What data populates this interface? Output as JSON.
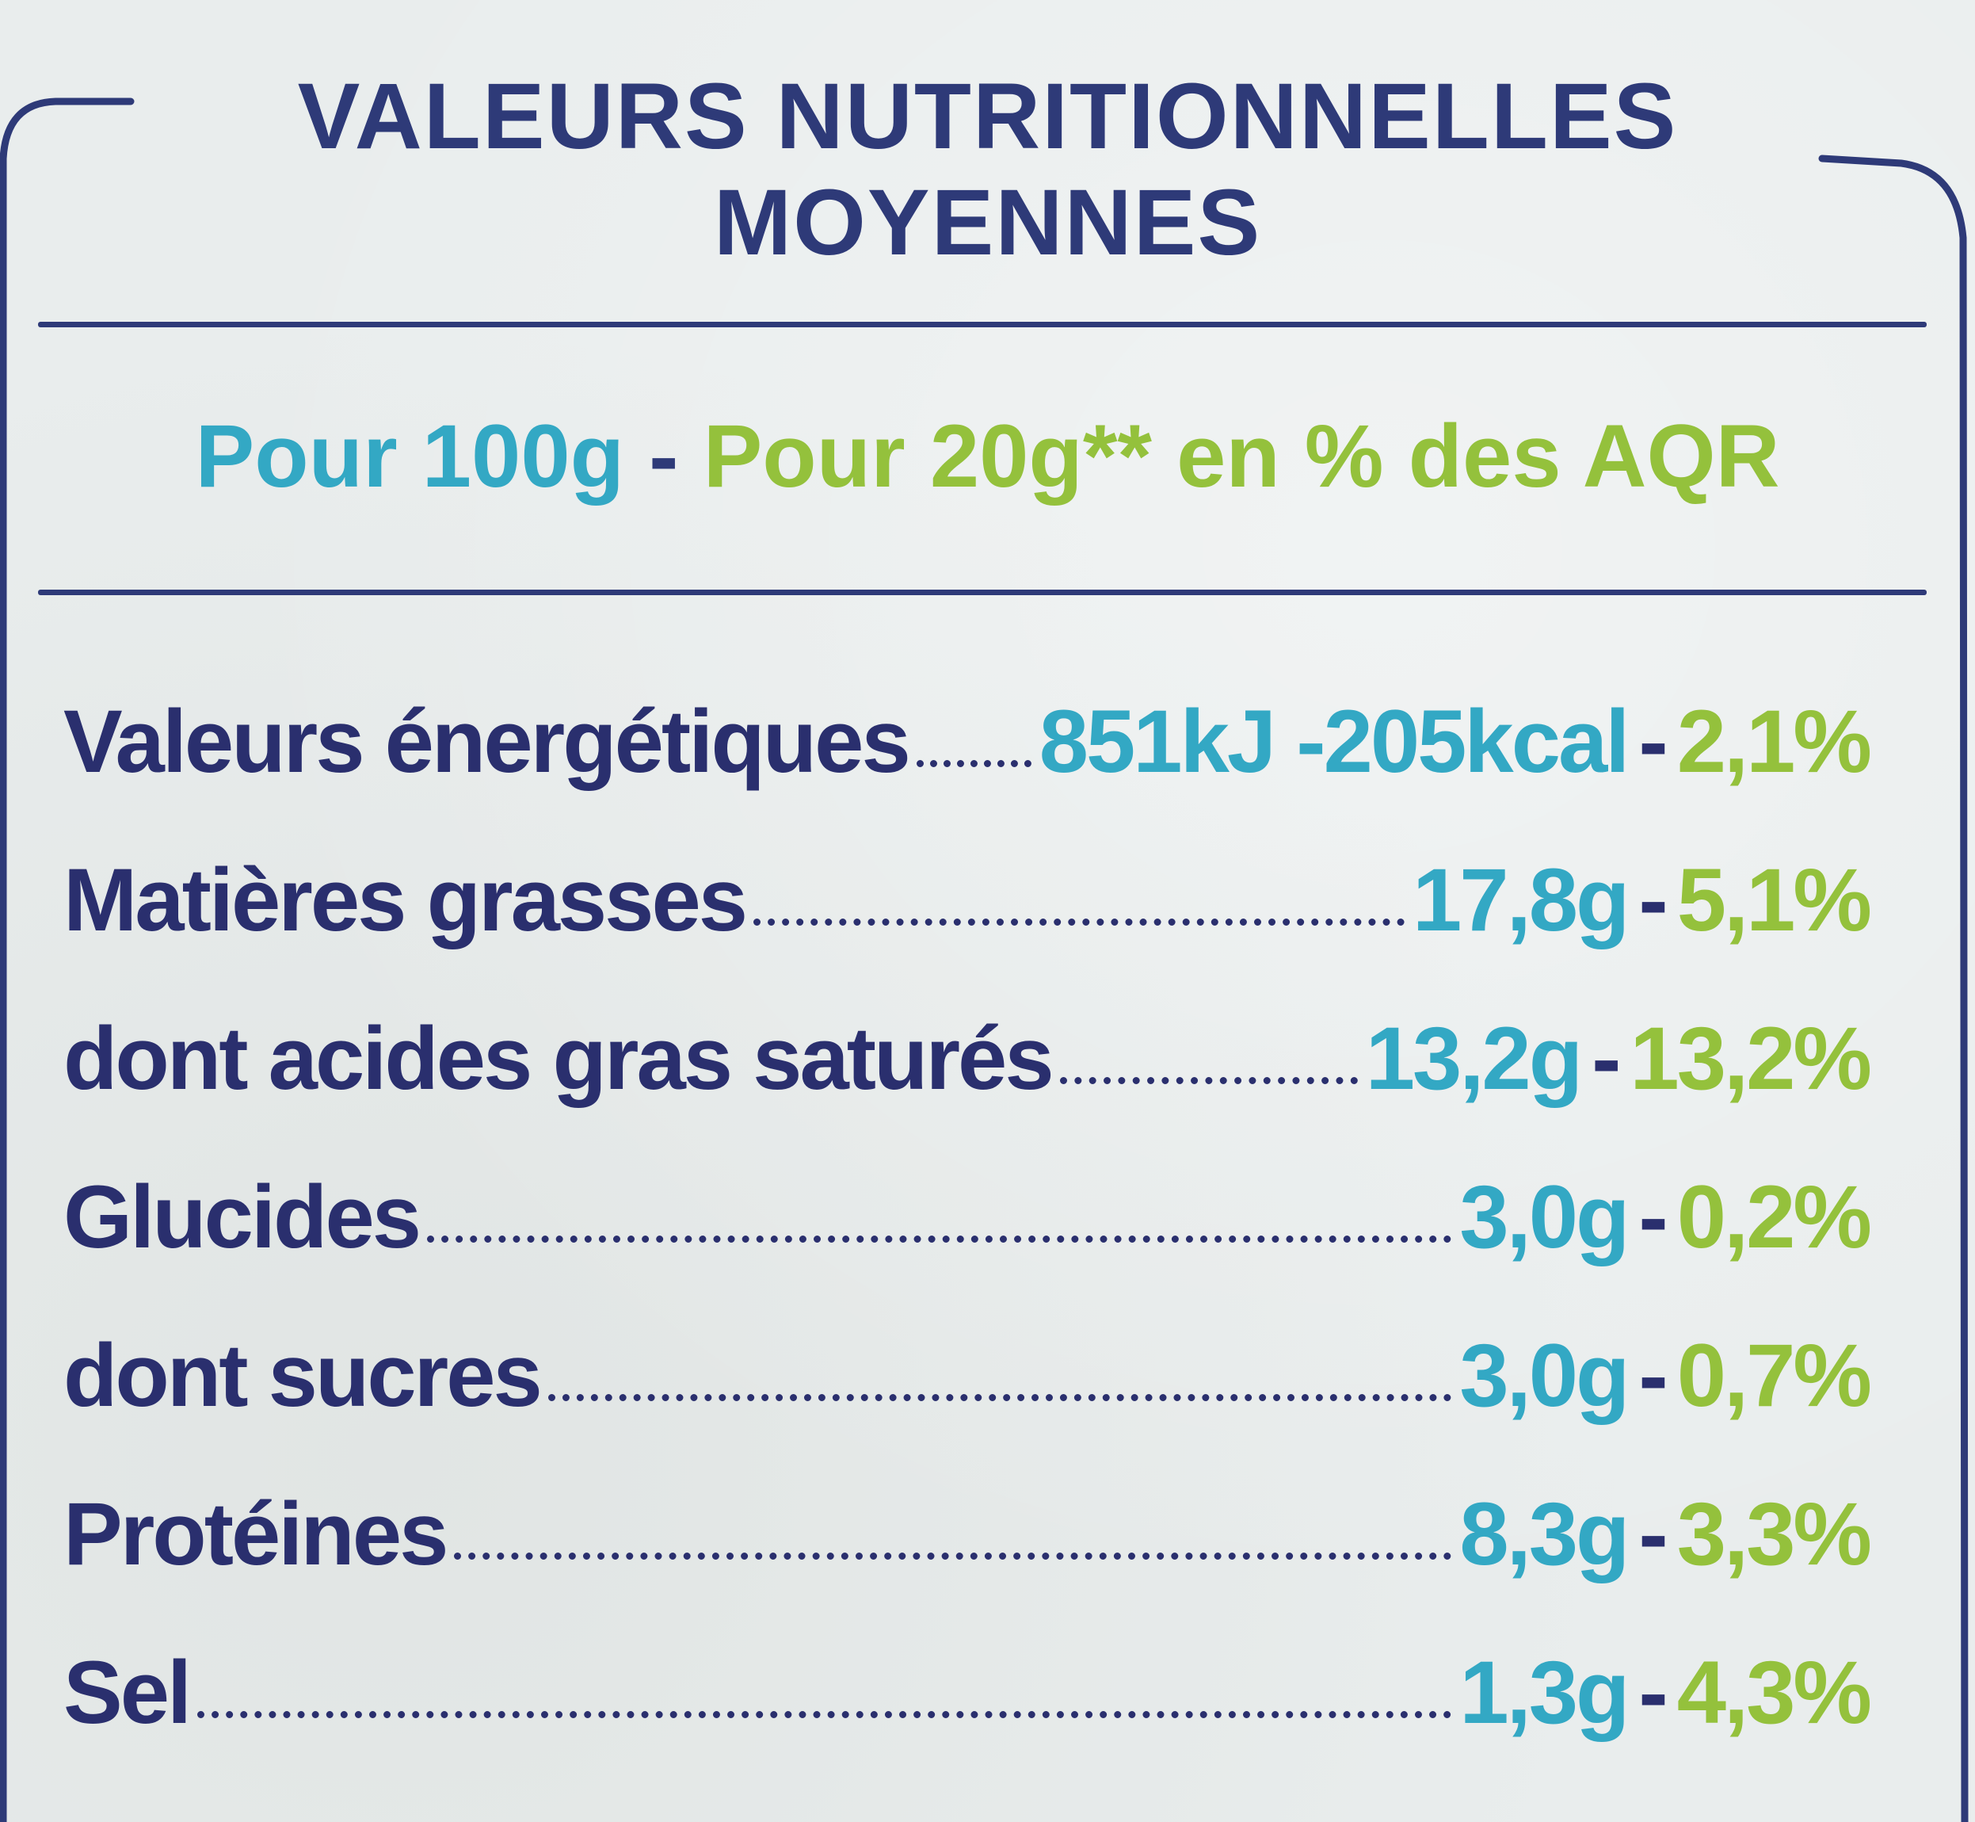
{
  "title": {
    "line1": "VALEURS NUTRITIONNELLES",
    "line2": "MOYENNES"
  },
  "basis": {
    "per_100g": "Pour 100g",
    "separator": "-",
    "per_20g": "Pour 20g** en % des AQR"
  },
  "nutrients": [
    {
      "name": "Valeurs énergétiques",
      "value_100g": "851kJ -205kcal",
      "pct_aqr": "2,1%"
    },
    {
      "name": "Matières grasses",
      "value_100g": "17,8g",
      "pct_aqr": "5,1%"
    },
    {
      "name": "dont acides gras saturés",
      "value_100g": "13,2g",
      "pct_aqr": "13,2%"
    },
    {
      "name": "Glucides",
      "value_100g": "3,0g",
      "pct_aqr": "0,2%"
    },
    {
      "name": "dont sucres",
      "value_100g": "3,0g",
      "pct_aqr": "0,7%"
    },
    {
      "name": "Protéines",
      "value_100g": "8,3g",
      "pct_aqr": "3,3%"
    },
    {
      "name": "Sel",
      "value_100g": "1,3g",
      "pct_aqr": "4,3%"
    }
  ],
  "row_dash": "-",
  "colors": {
    "navy": "#2e3a78",
    "teal": "#33a8c4",
    "green": "#94c13c",
    "background": "#e9eded"
  }
}
